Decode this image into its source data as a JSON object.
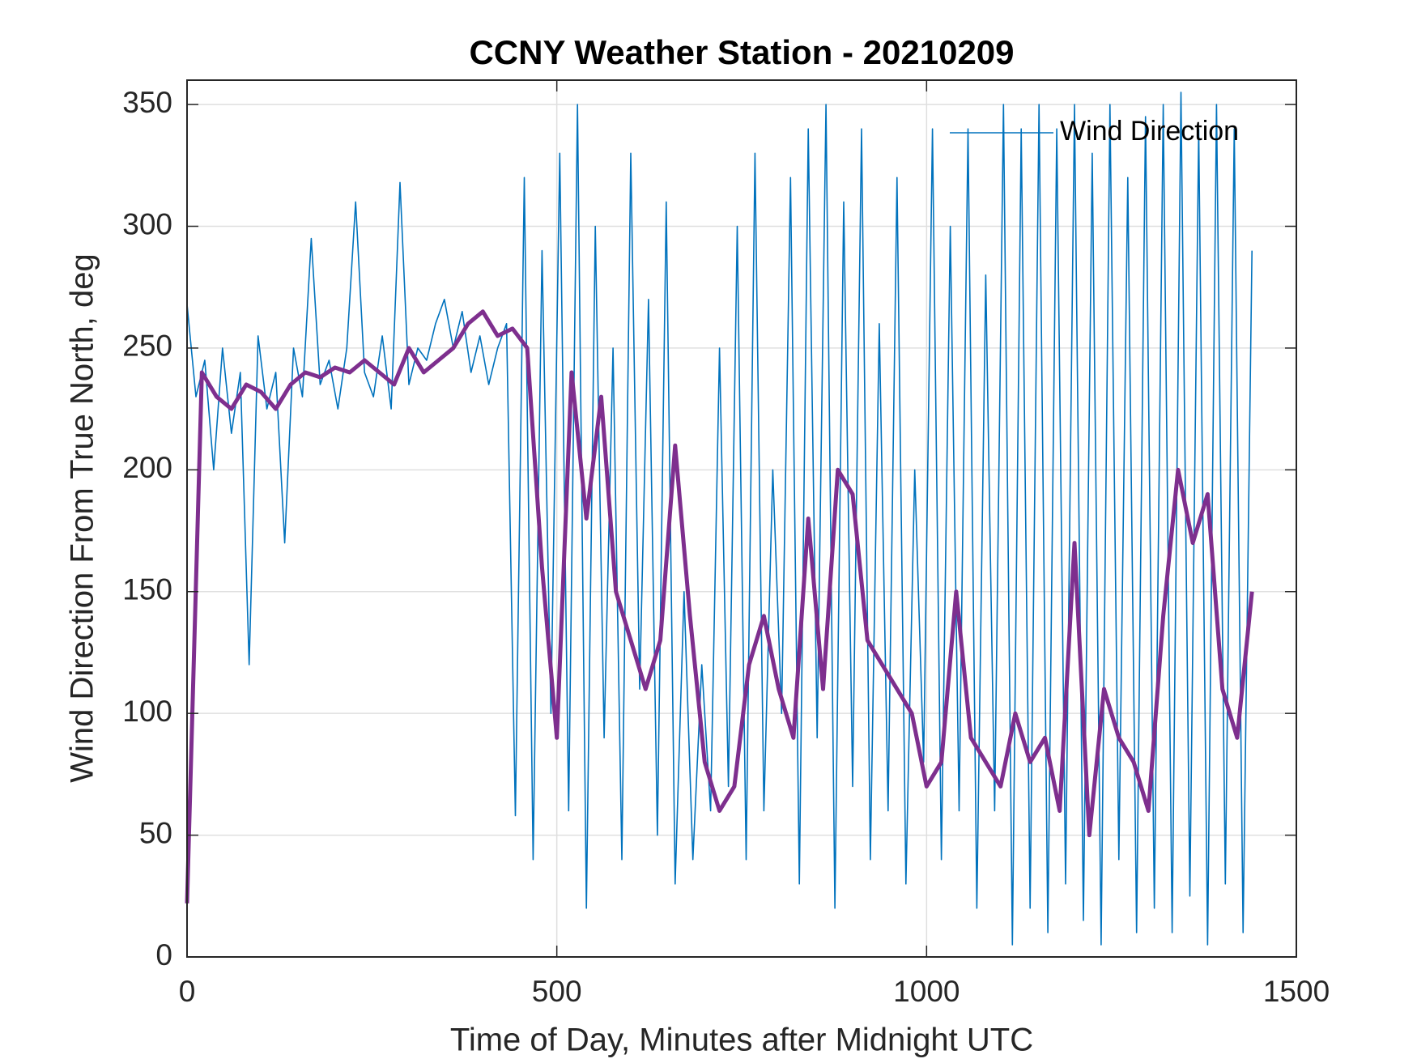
{
  "chart_data": {
    "type": "line",
    "title": "CCNY Weather Station - 20210209",
    "xlabel": "Time of Day, Minutes after Midnight UTC",
    "ylabel": "Wind Direction From True North, deg",
    "xlim": [
      0,
      1500
    ],
    "ylim": [
      0,
      360
    ],
    "xticks": [
      0,
      500,
      1000,
      1500
    ],
    "yticks": [
      0,
      50,
      100,
      150,
      200,
      250,
      300,
      350
    ],
    "grid": true,
    "legend": "upper right",
    "series": [
      {
        "name": "Wind Direction",
        "color": "#0072bd",
        "x": [
          0,
          12,
          24,
          36,
          48,
          60,
          72,
          84,
          96,
          108,
          120,
          132,
          144,
          156,
          168,
          180,
          192,
          204,
          216,
          228,
          240,
          252,
          264,
          276,
          288,
          300,
          312,
          324,
          336,
          348,
          360,
          372,
          384,
          396,
          408,
          420,
          432,
          444,
          456,
          468,
          480,
          492,
          504,
          516,
          528,
          540,
          552,
          564,
          576,
          588,
          600,
          612,
          624,
          636,
          648,
          660,
          672,
          684,
          696,
          708,
          720,
          732,
          744,
          756,
          768,
          780,
          792,
          804,
          816,
          828,
          840,
          852,
          864,
          876,
          888,
          900,
          912,
          924,
          936,
          948,
          960,
          972,
          984,
          996,
          1008,
          1020,
          1032,
          1044,
          1056,
          1068,
          1080,
          1092,
          1104,
          1116,
          1128,
          1140,
          1152,
          1164,
          1176,
          1188,
          1200,
          1212,
          1224,
          1236,
          1248,
          1260,
          1272,
          1284,
          1296,
          1308,
          1320,
          1332,
          1344,
          1356,
          1368,
          1380,
          1392,
          1404,
          1416,
          1428,
          1440
        ],
        "values": [
          268,
          230,
          245,
          200,
          250,
          215,
          240,
          120,
          255,
          225,
          240,
          170,
          250,
          230,
          295,
          235,
          245,
          225,
          250,
          310,
          240,
          230,
          255,
          225,
          318,
          235,
          250,
          245,
          260,
          270,
          250,
          265,
          240,
          255,
          235,
          250,
          260,
          58,
          320,
          40,
          290,
          100,
          330,
          60,
          350,
          20,
          300,
          90,
          250,
          40,
          330,
          110,
          270,
          50,
          310,
          30,
          150,
          40,
          120,
          60,
          250,
          70,
          300,
          40,
          330,
          60,
          200,
          100,
          320,
          30,
          340,
          90,
          350,
          20,
          310,
          70,
          340,
          40,
          260,
          60,
          320,
          30,
          200,
          80,
          340,
          40,
          300,
          60,
          340,
          20,
          280,
          60,
          350,
          5,
          340,
          20,
          350,
          10,
          340,
          30,
          350,
          15,
          330,
          5,
          350,
          40,
          320,
          10,
          345,
          20,
          350,
          10,
          355,
          25,
          340,
          5,
          350,
          30,
          340,
          10,
          290
        ]
      },
      {
        "color": "#7e2f8e",
        "x": [
          0,
          20,
          40,
          60,
          80,
          100,
          120,
          140,
          160,
          180,
          200,
          220,
          240,
          260,
          280,
          300,
          320,
          340,
          360,
          380,
          400,
          420,
          440,
          460,
          480,
          500,
          520,
          540,
          560,
          580,
          600,
          620,
          640,
          660,
          680,
          700,
          720,
          740,
          760,
          780,
          800,
          820,
          840,
          860,
          880,
          900,
          920,
          940,
          960,
          980,
          1000,
          1020,
          1040,
          1060,
          1080,
          1100,
          1120,
          1140,
          1160,
          1180,
          1200,
          1220,
          1240,
          1260,
          1280,
          1300,
          1320,
          1340,
          1360,
          1380,
          1400,
          1420,
          1440
        ],
        "values": [
          22,
          240,
          230,
          225,
          235,
          232,
          225,
          235,
          240,
          238,
          242,
          240,
          245,
          240,
          235,
          250,
          240,
          245,
          250,
          260,
          265,
          255,
          258,
          250,
          160,
          90,
          240,
          180,
          230,
          150,
          130,
          110,
          130,
          210,
          140,
          80,
          60,
          70,
          120,
          140,
          110,
          90,
          180,
          110,
          200,
          190,
          130,
          120,
          110,
          100,
          70,
          80,
          150,
          90,
          80,
          70,
          100,
          80,
          90,
          60,
          170,
          50,
          110,
          90,
          80,
          60,
          140,
          200,
          170,
          190,
          110,
          90,
          150
        ]
      }
    ]
  }
}
